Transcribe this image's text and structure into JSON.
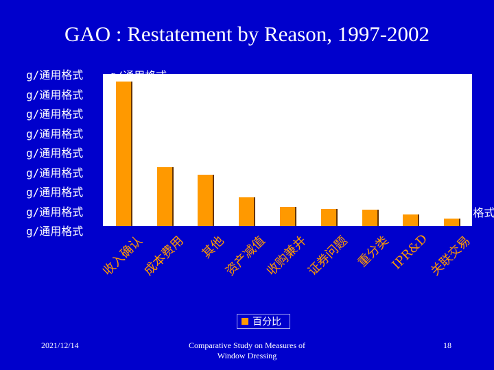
{
  "slide": {
    "title": "GAO : Restatement by Reason, 1997-2002",
    "footer_date": "2021/12/14",
    "footer_center_line1": "Comparative Study on Measures of",
    "footer_center_line2": "Window Dressing",
    "page_number": "18"
  },
  "colors": {
    "background": "#0000cc",
    "bar": "#ff9900",
    "plot_area": "#ffffff",
    "category_text": "#ff9900"
  },
  "chart_data": {
    "type": "bar",
    "categories": [
      "收入确认",
      "成本费用",
      "其他",
      "资产减值",
      "收购兼并",
      "证券问题",
      "重分类",
      "IPR&D",
      "关联交易"
    ],
    "series": [
      {
        "name": "百分比",
        "values": [
          0.38,
          0.155,
          0.135,
          0.075,
          0.05,
          0.045,
          0.043,
          0.03,
          0.02
        ]
      }
    ],
    "data_labels": [
      "g/通用格式",
      "g/通用格式",
      "g/通用格式",
      "g/通用格式",
      "g/通用格式",
      "g/通用格式",
      "g/通用格式",
      "g/通用格式",
      "g/通用格式"
    ],
    "y_tick_labels": [
      "g/通用格式",
      "g/通用格式",
      "g/通用格式",
      "g/通用格式",
      "g/通用格式",
      "g/通用格式",
      "g/通用格式",
      "g/通用格式",
      "g/通用格式"
    ],
    "ylim": [
      0,
      0.4
    ],
    "grid": false,
    "legend": {
      "position": "bottom",
      "label": "百分比"
    }
  }
}
